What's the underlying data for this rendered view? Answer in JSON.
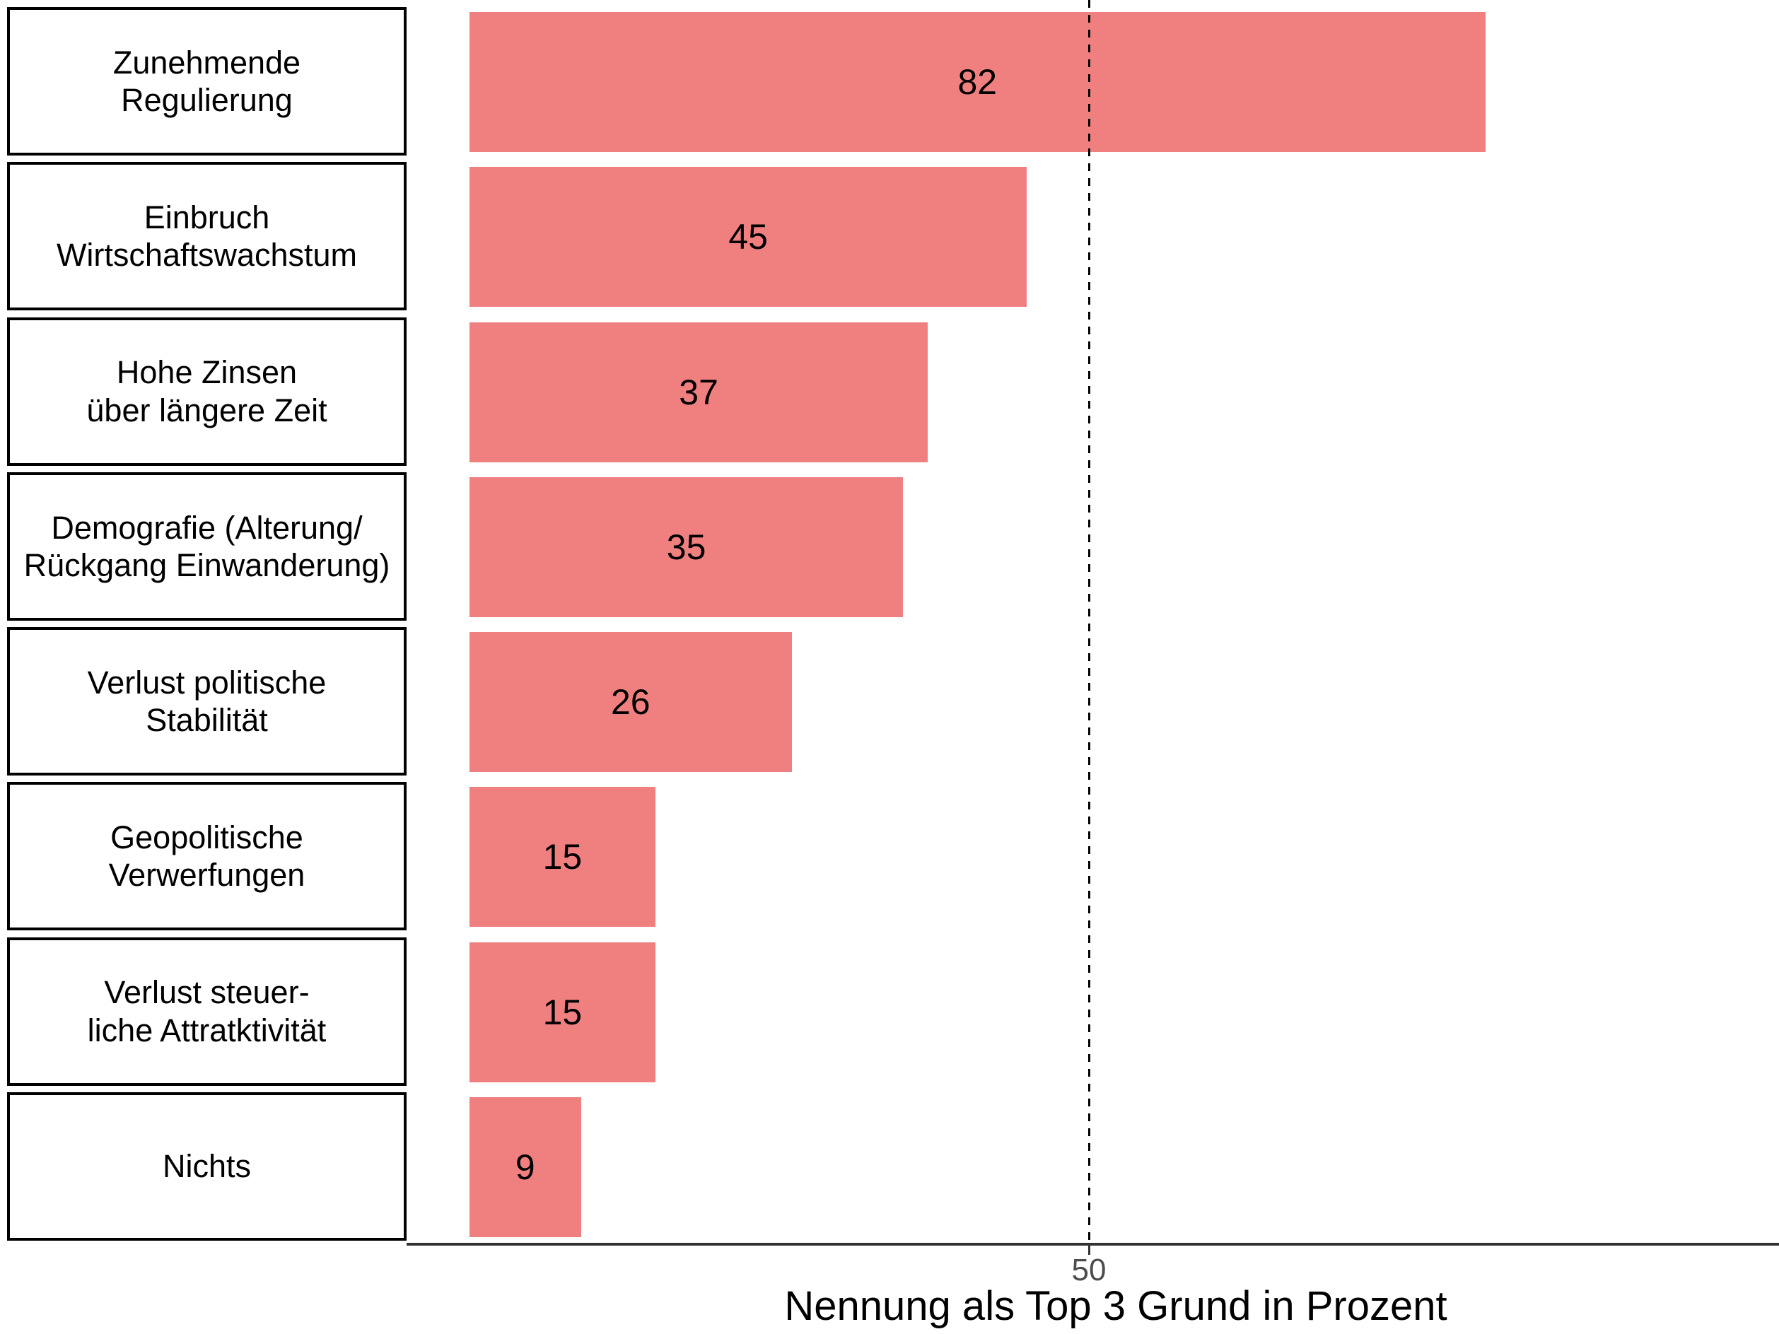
{
  "chart_data": {
    "type": "bar",
    "orientation": "horizontal",
    "title": "",
    "xlabel": "Nennung als Top 3 Grund in Prozent",
    "ylabel": "",
    "categories": [
      "Zunehmende\nRegulierung",
      "Einbruch\nWirtschaftswachstum",
      "Hohe Zinsen\nüber längere Zeit",
      "Demografie (Alterung/\nRückgang Einwanderung)",
      "Verlust politische\nStabilität",
      "Geopolitische\nVerwerfungen",
      "Verlust steuer-\nliche Attratktivität",
      "Nichts"
    ],
    "values": [
      82,
      45,
      37,
      35,
      26,
      15,
      15,
      9
    ],
    "value_labels": [
      "82",
      "45",
      "37",
      "35",
      "26",
      "15",
      "15",
      "9"
    ],
    "xlim": [
      0,
      106
    ],
    "x_ticks": [
      50
    ],
    "x_tick_labels": [
      "50"
    ],
    "reference_line_x": 50,
    "reference_line_style": "dashed",
    "grid": false,
    "legend": "none",
    "bar_color": "#F08080",
    "bar_label_color": "#000000",
    "axis_line_color": "#333333",
    "tick_label_color": "#4D4D4D",
    "category_box_border_color": "#000000"
  },
  "axis": {
    "tick_label": "50",
    "title": "Nennung als Top 3 Grund in Prozent"
  }
}
